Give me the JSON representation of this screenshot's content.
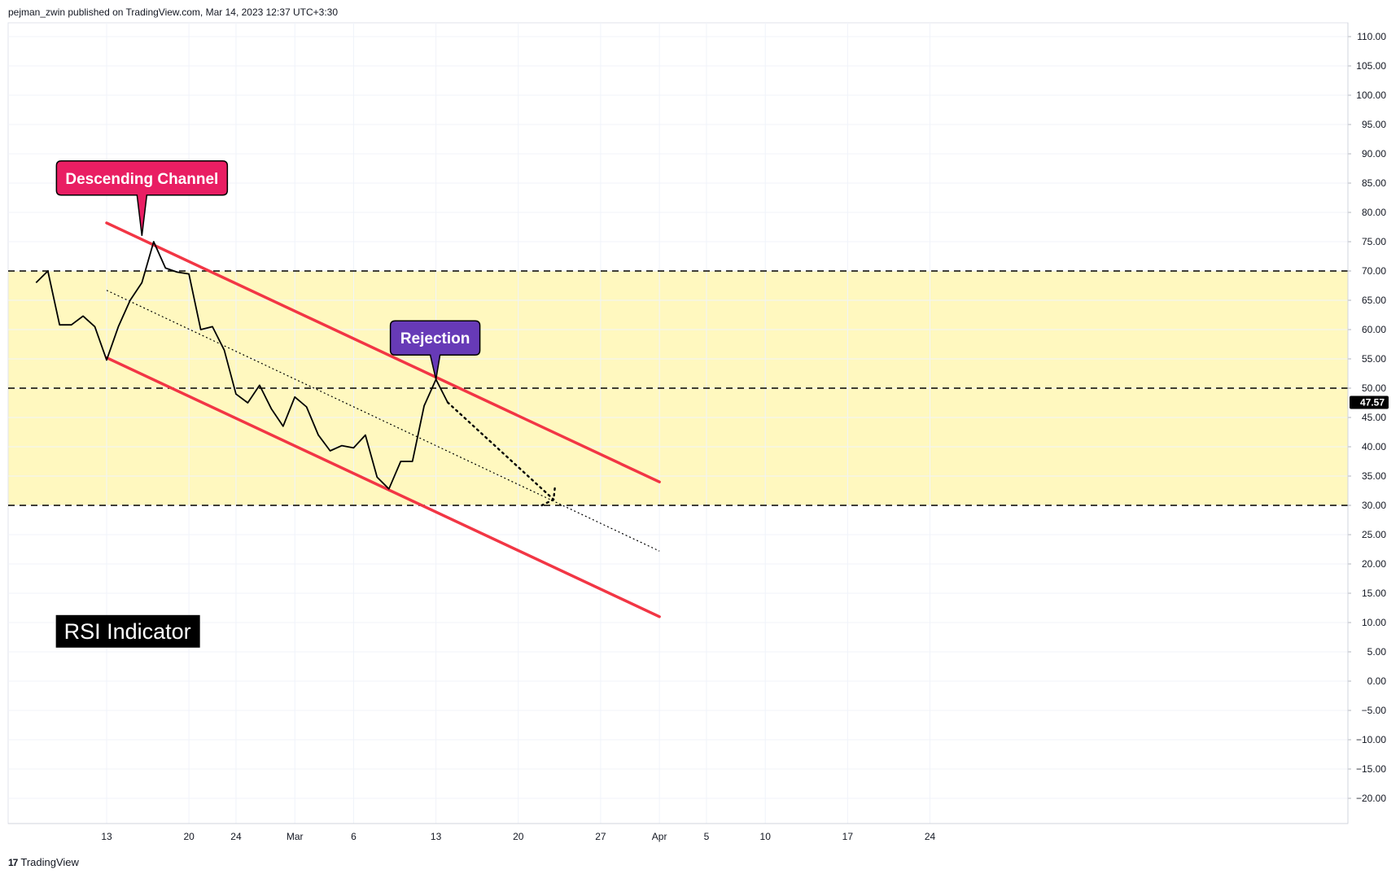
{
  "header": {
    "publish_line": "pejman_zwin published on TradingView.com, Mar 14, 2023 12:37 UTC+3:30"
  },
  "footer": {
    "brand": "TradingView",
    "logo_glyph": "17"
  },
  "colors": {
    "zone_fill": "#fff8bf",
    "channel_line": "#f23645",
    "rsi_line": "#000000",
    "label_descending_bg": "#e91e63",
    "label_rejection_bg": "#673ab7",
    "price_badge_bg": "#000000"
  },
  "chart_data": {
    "type": "line",
    "title": "RSI Indicator",
    "x_axis": {
      "tick_labels": [
        "13",
        "20",
        "24",
        "Mar",
        "6",
        "13",
        "20",
        "27",
        "Apr",
        "5",
        "10",
        "17",
        "24"
      ],
      "tick_dates": [
        "2023-02-13",
        "2023-02-20",
        "2023-02-24",
        "2023-03-01",
        "2023-03-06",
        "2023-03-13",
        "2023-03-20",
        "2023-03-27",
        "2023-04-01",
        "2023-04-05",
        "2023-04-10",
        "2023-04-17",
        "2023-04-24"
      ]
    },
    "y_axis": {
      "ylim": [
        -22.5,
        112.5
      ],
      "tick_values": [
        110,
        105,
        100,
        95,
        90,
        85,
        80,
        75,
        70,
        65,
        60,
        55,
        50,
        45,
        40,
        35,
        30,
        25,
        20,
        15,
        10,
        5,
        0,
        -5,
        -10,
        -15,
        -20
      ],
      "tick_labels": [
        "110.00",
        "105.00",
        "100.00",
        "95.00",
        "90.00",
        "85.00",
        "80.00",
        "75.00",
        "70.00",
        "65.00",
        "60.00",
        "55.00",
        "50.00",
        "45.00",
        "40.00",
        "35.00",
        "30.00",
        "25.00",
        "20.00",
        "15.00",
        "10.00",
        "5.00",
        "0.00",
        "−5.00",
        "−10.00",
        "−15.00",
        "−20.00"
      ]
    },
    "grid": true,
    "series": [
      {
        "values_by_date": [
          [
            "2023-02-07",
            68.0
          ],
          [
            "2023-02-08",
            70.0
          ],
          [
            "2023-02-09",
            60.8
          ],
          [
            "2023-02-10",
            60.8
          ],
          [
            "2023-02-11",
            62.3
          ],
          [
            "2023-02-12",
            60.5
          ],
          [
            "2023-02-13",
            54.8
          ],
          [
            "2023-02-14",
            60.5
          ],
          [
            "2023-02-15",
            65.0
          ],
          [
            "2023-02-16",
            68.0
          ],
          [
            "2023-02-17",
            75.0
          ],
          [
            "2023-02-18",
            70.5
          ],
          [
            "2023-02-19",
            69.8
          ],
          [
            "2023-02-20",
            69.5
          ],
          [
            "2023-02-21",
            60.0
          ],
          [
            "2023-02-22",
            60.5
          ],
          [
            "2023-02-23",
            56.5
          ],
          [
            "2023-02-24",
            49.0
          ],
          [
            "2023-02-25",
            47.5
          ],
          [
            "2023-02-26",
            50.5
          ],
          [
            "2023-02-27",
            46.5
          ],
          [
            "2023-02-28",
            43.5
          ],
          [
            "2023-03-01",
            48.5
          ],
          [
            "2023-03-02",
            46.8
          ],
          [
            "2023-03-03",
            42.0
          ],
          [
            "2023-03-04",
            39.3
          ],
          [
            "2023-03-05",
            40.2
          ],
          [
            "2023-03-06",
            39.8
          ],
          [
            "2023-03-07",
            42.0
          ],
          [
            "2023-03-08",
            34.8
          ],
          [
            "2023-03-09",
            32.8
          ],
          [
            "2023-03-10",
            37.5
          ],
          [
            "2023-03-11",
            37.5
          ],
          [
            "2023-03-12",
            47.0
          ],
          [
            "2023-03-13",
            51.5
          ],
          [
            "2023-03-14",
            47.57
          ]
        ]
      }
    ],
    "current_value_label": "47.57",
    "horizontal_levels": [
      70,
      50,
      30
    ],
    "zone": [
      30,
      70
    ],
    "channel_upper": {
      "start": [
        "2023-02-13",
        78.2
      ],
      "end": [
        "2023-04-01",
        34.0
      ]
    },
    "channel_lower": {
      "start": [
        "2023-02-13",
        55.2
      ],
      "end": [
        "2023-04-01",
        11.0
      ]
    },
    "channel_mid_dotted": {
      "start": [
        "2023-02-13",
        66.7
      ],
      "end": [
        "2023-04-01",
        22.2
      ]
    },
    "projection_dotted": {
      "points": [
        [
          "2023-03-14",
          47.57
        ],
        [
          "2023-03-23",
          31.0
        ]
      ]
    },
    "projection_hook": {
      "points": [
        [
          "2023-03-22",
          30.0
        ],
        [
          "2023-03-23",
          31.0
        ],
        [
          "2023-03-23",
          33.5
        ]
      ]
    },
    "annotations": [
      {
        "text": "Descending Channel",
        "style": "descending",
        "anchor": [
          "2023-02-16",
          76.0
        ]
      },
      {
        "text": "Rejection",
        "style": "rejection",
        "anchor": [
          "2023-03-13",
          51.5
        ]
      },
      {
        "text": "RSI Indicator",
        "style": "title-box",
        "anchor": [
          "2023-02-10",
          8.5
        ]
      }
    ]
  }
}
